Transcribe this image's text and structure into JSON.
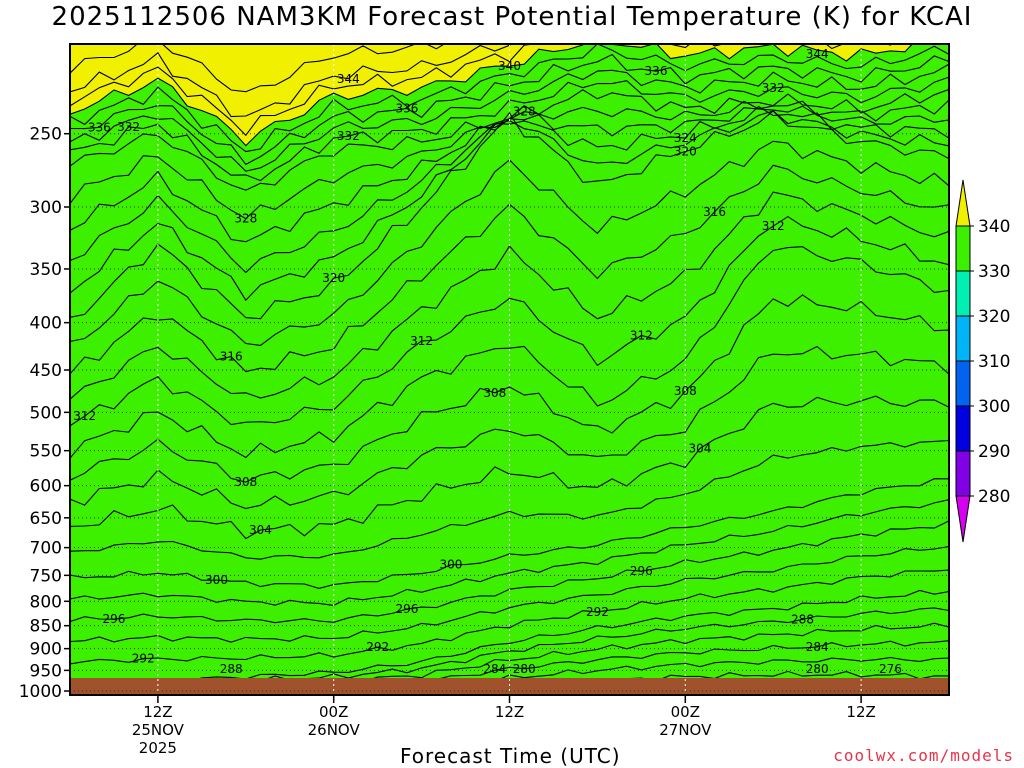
{
  "chart_data": {
    "type": "contour",
    "title": "2025112506 NAM3KM Forecast Potential Temperature (K) for KCAI",
    "xlabel": "Forecast Time (UTC)",
    "ylabel": "",
    "y_axis": {
      "units": "hPa",
      "scale": "log",
      "range": [
        1010,
        200
      ],
      "ticks": [
        250,
        300,
        350,
        400,
        450,
        500,
        550,
        600,
        650,
        700,
        750,
        800,
        850,
        900,
        950,
        1000
      ]
    },
    "x_axis": {
      "start": "2025-11-25T06Z",
      "end": "2025-11-27T18Z",
      "ticks": [
        {
          "line1": "12Z",
          "line2": "25NOV",
          "line3": "2025"
        },
        {
          "line1": "00Z",
          "line2": "26NOV",
          "line3": ""
        },
        {
          "line1": "12Z",
          "line2": "",
          "line3": ""
        },
        {
          "line1": "00Z",
          "line2": "27NOV",
          "line3": ""
        },
        {
          "line1": "12Z",
          "line2": "",
          "line3": ""
        }
      ],
      "tick_hours": [
        6,
        18,
        30,
        42,
        54
      ]
    },
    "grid": true,
    "colorbar": {
      "placement": "right",
      "labels": [
        "280",
        "290",
        "300",
        "310",
        "320",
        "330",
        "340"
      ],
      "levels": [
        270,
        280,
        290,
        300,
        310,
        320,
        330,
        340,
        350
      ],
      "colors": [
        "#d600f0",
        "#8200e6",
        "#0000e0",
        "#0064f0",
        "#00b4f8",
        "#00f0b4",
        "#3cf000",
        "#f0f000"
      ]
    },
    "contour_interval": 2,
    "contour_labels": [
      "336",
      "344",
      "344",
      "340",
      "336",
      "336",
      "332",
      "332",
      "332",
      "328",
      "328",
      "324",
      "320",
      "316",
      "312",
      "320",
      "312",
      "316",
      "312",
      "312",
      "308",
      "308",
      "304",
      "308",
      "304",
      "300",
      "300",
      "296",
      "292",
      "288",
      "296",
      "296",
      "292",
      "284",
      "292",
      "284",
      "280",
      "280",
      "288",
      "276"
    ],
    "isentrope_levels_K": [
      276,
      280,
      284,
      288,
      292,
      296,
      300,
      304,
      308,
      312,
      316,
      320,
      324,
      328,
      332,
      336,
      340,
      344
    ],
    "isentrope_pressure_profiles": {
      "hours": [
        0,
        6,
        12,
        18,
        24,
        30,
        36,
        42,
        48,
        54,
        60
      ],
      "k280": [
        1010,
        1010,
        1010,
        1010,
        1010,
        990,
        975,
        965,
        960,
        960,
        965
      ],
      "k290": [
        980,
        975,
        965,
        955,
        930,
        885,
        855,
        830,
        815,
        795,
        780
      ],
      "k300": [
        755,
        745,
        765,
        770,
        745,
        715,
        695,
        665,
        640,
        610,
        590
      ],
      "k310": [
        550,
        500,
        555,
        530,
        460,
        420,
        490,
        440,
        330,
        345,
        370
      ],
      "k320": [
        400,
        330,
        395,
        365,
        300,
        240,
        285,
        260,
        240,
        255,
        265
      ],
      "k330": [
        270,
        250,
        290,
        260,
        255,
        240,
        225,
        235,
        230,
        235,
        225
      ]
    }
  },
  "credit": "coolwx.com/models"
}
